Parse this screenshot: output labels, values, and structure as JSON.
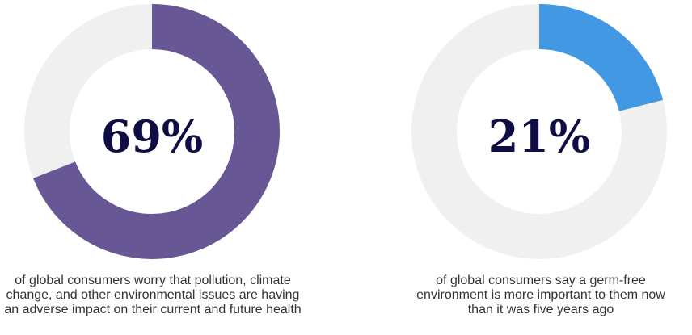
{
  "colors": {
    "track": "#f0f0f0",
    "left_fill": "#675895",
    "right_fill": "#4398e3",
    "percent_text": "#0e0d44"
  },
  "chart_data": [
    {
      "type": "pie",
      "value": 69,
      "label": "69%",
      "caption_lines": [
        "of global consumers worry that pollution, climate",
        "change, and other environmental issues are having",
        "an adverse impact on their current and future health"
      ]
    },
    {
      "type": "pie",
      "value": 21,
      "label": "21%",
      "caption_lines": [
        "of global consumers say a germ-free",
        "environment is more important to them now",
        "than it was five years ago"
      ]
    }
  ]
}
